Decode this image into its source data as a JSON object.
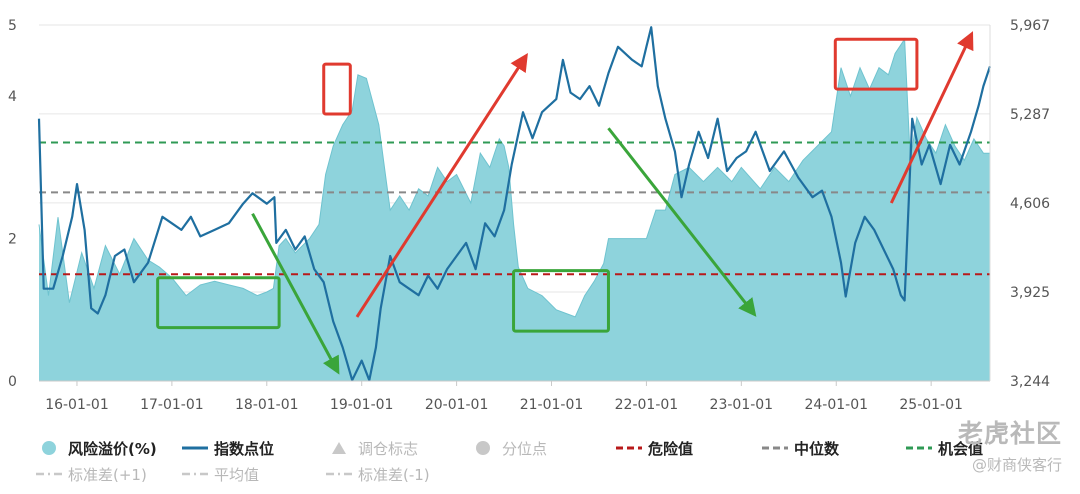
{
  "chart_data": {
    "type": "line",
    "title": "",
    "x_tick_labels": [
      "16-01-01",
      "17-01-01",
      "18-01-01",
      "19-01-01",
      "20-01-01",
      "21-01-01",
      "22-01-01",
      "23-01-01",
      "24-01-01",
      "25-01-01"
    ],
    "x_range": [
      2015.6,
      2025.62
    ],
    "y_left": {
      "range": [
        0,
        5
      ],
      "tick_labels": [
        "0",
        "2",
        "4",
        "5"
      ]
    },
    "y_right": {
      "range": [
        3244,
        5967
      ],
      "tick_labels": [
        "3,244",
        "3,925",
        "4,606",
        "5,287",
        "5,967"
      ]
    },
    "grid": "horizontal",
    "legend_placement": "bottom",
    "series": [
      {
        "name": "风险溢价(%)",
        "type": "area",
        "axis": "left",
        "color": "#8ed3dc",
        "points": [
          [
            2015.6,
            2.2
          ],
          [
            2015.7,
            1.2
          ],
          [
            2015.8,
            2.3
          ],
          [
            2015.92,
            1.1
          ],
          [
            2016.05,
            1.8
          ],
          [
            2016.18,
            1.3
          ],
          [
            2016.3,
            1.9
          ],
          [
            2016.45,
            1.5
          ],
          [
            2016.6,
            2.0
          ],
          [
            2016.75,
            1.7
          ],
          [
            2016.87,
            1.6
          ],
          [
            2017.0,
            1.45
          ],
          [
            2017.15,
            1.2
          ],
          [
            2017.3,
            1.35
          ],
          [
            2017.45,
            1.4
          ],
          [
            2017.6,
            1.35
          ],
          [
            2017.75,
            1.3
          ],
          [
            2017.9,
            1.2
          ],
          [
            2018.0,
            1.25
          ],
          [
            2018.07,
            1.3
          ],
          [
            2018.13,
            1.9
          ],
          [
            2018.2,
            2.0
          ],
          [
            2018.3,
            1.8
          ],
          [
            2018.45,
            2.0
          ],
          [
            2018.55,
            2.2
          ],
          [
            2018.62,
            2.9
          ],
          [
            2018.7,
            3.3
          ],
          [
            2018.8,
            3.6
          ],
          [
            2018.9,
            3.8
          ],
          [
            2018.96,
            4.3
          ],
          [
            2019.05,
            4.25
          ],
          [
            2019.1,
            4.0
          ],
          [
            2019.18,
            3.6
          ],
          [
            2019.25,
            2.9
          ],
          [
            2019.3,
            2.4
          ],
          [
            2019.4,
            2.6
          ],
          [
            2019.5,
            2.4
          ],
          [
            2019.6,
            2.7
          ],
          [
            2019.7,
            2.6
          ],
          [
            2019.8,
            3.0
          ],
          [
            2019.9,
            2.8
          ],
          [
            2020.0,
            2.9
          ],
          [
            2020.15,
            2.5
          ],
          [
            2020.25,
            3.2
          ],
          [
            2020.35,
            3.0
          ],
          [
            2020.45,
            3.4
          ],
          [
            2020.5,
            3.3
          ],
          [
            2020.55,
            3.0
          ],
          [
            2020.6,
            2.2
          ],
          [
            2020.65,
            1.6
          ],
          [
            2020.75,
            1.3
          ],
          [
            2020.9,
            1.2
          ],
          [
            2021.05,
            1.0
          ],
          [
            2021.15,
            0.95
          ],
          [
            2021.25,
            0.9
          ],
          [
            2021.35,
            1.2
          ],
          [
            2021.45,
            1.4
          ],
          [
            2021.55,
            1.65
          ],
          [
            2021.6,
            2.0
          ],
          [
            2021.7,
            2.0
          ],
          [
            2021.85,
            2.0
          ],
          [
            2022.0,
            2.0
          ],
          [
            2022.1,
            2.4
          ],
          [
            2022.2,
            2.4
          ],
          [
            2022.3,
            2.9
          ],
          [
            2022.45,
            3.0
          ],
          [
            2022.6,
            2.8
          ],
          [
            2022.75,
            3.0
          ],
          [
            2022.9,
            2.8
          ],
          [
            2023.0,
            3.0
          ],
          [
            2023.2,
            2.7
          ],
          [
            2023.35,
            3.0
          ],
          [
            2023.5,
            2.8
          ],
          [
            2023.65,
            3.1
          ],
          [
            2023.8,
            3.3
          ],
          [
            2023.95,
            3.5
          ],
          [
            2024.05,
            4.4
          ],
          [
            2024.15,
            4.0
          ],
          [
            2024.25,
            4.4
          ],
          [
            2024.35,
            4.1
          ],
          [
            2024.45,
            4.4
          ],
          [
            2024.55,
            4.3
          ],
          [
            2024.62,
            4.6
          ],
          [
            2024.72,
            4.8
          ],
          [
            2024.78,
            3.1
          ],
          [
            2024.85,
            3.7
          ],
          [
            2024.95,
            3.4
          ],
          [
            2025.05,
            3.2
          ],
          [
            2025.15,
            3.6
          ],
          [
            2025.25,
            3.3
          ],
          [
            2025.35,
            3.1
          ],
          [
            2025.45,
            3.4
          ],
          [
            2025.55,
            3.2
          ],
          [
            2025.62,
            3.2
          ]
        ]
      },
      {
        "name": "指数点位",
        "type": "line",
        "axis": "right",
        "color": "#1f6fa0",
        "points": [
          [
            2015.6,
            5250
          ],
          [
            2015.65,
            3950
          ],
          [
            2015.75,
            3950
          ],
          [
            2015.85,
            4200
          ],
          [
            2015.95,
            4500
          ],
          [
            2016.0,
            4750
          ],
          [
            2016.08,
            4400
          ],
          [
            2016.15,
            3800
          ],
          [
            2016.22,
            3760
          ],
          [
            2016.3,
            3900
          ],
          [
            2016.4,
            4200
          ],
          [
            2016.5,
            4250
          ],
          [
            2016.6,
            4000
          ],
          [
            2016.75,
            4150
          ],
          [
            2016.9,
            4500
          ],
          [
            2017.0,
            4450
          ],
          [
            2017.1,
            4400
          ],
          [
            2017.2,
            4500
          ],
          [
            2017.3,
            4350
          ],
          [
            2017.45,
            4400
          ],
          [
            2017.6,
            4450
          ],
          [
            2017.75,
            4600
          ],
          [
            2017.85,
            4680
          ],
          [
            2018.0,
            4600
          ],
          [
            2018.08,
            4650
          ],
          [
            2018.1,
            4300
          ],
          [
            2018.2,
            4400
          ],
          [
            2018.3,
            4250
          ],
          [
            2018.4,
            4350
          ],
          [
            2018.5,
            4100
          ],
          [
            2018.6,
            4000
          ],
          [
            2018.7,
            3700
          ],
          [
            2018.8,
            3500
          ],
          [
            2018.9,
            3250
          ],
          [
            2019.0,
            3400
          ],
          [
            2019.08,
            3250
          ],
          [
            2019.15,
            3500
          ],
          [
            2019.2,
            3800
          ],
          [
            2019.3,
            4200
          ],
          [
            2019.4,
            4000
          ],
          [
            2019.5,
            3950
          ],
          [
            2019.6,
            3900
          ],
          [
            2019.7,
            4050
          ],
          [
            2019.8,
            3950
          ],
          [
            2019.9,
            4100
          ],
          [
            2020.0,
            4200
          ],
          [
            2020.1,
            4300
          ],
          [
            2020.2,
            4100
          ],
          [
            2020.3,
            4450
          ],
          [
            2020.4,
            4350
          ],
          [
            2020.5,
            4550
          ],
          [
            2020.58,
            4900
          ],
          [
            2020.7,
            5300
          ],
          [
            2020.8,
            5100
          ],
          [
            2020.9,
            5300
          ],
          [
            2021.05,
            5400
          ],
          [
            2021.12,
            5700
          ],
          [
            2021.2,
            5450
          ],
          [
            2021.3,
            5400
          ],
          [
            2021.4,
            5500
          ],
          [
            2021.5,
            5350
          ],
          [
            2021.6,
            5600
          ],
          [
            2021.7,
            5800
          ],
          [
            2021.85,
            5700
          ],
          [
            2021.95,
            5650
          ],
          [
            2022.0,
            5800
          ],
          [
            2022.05,
            5950
          ],
          [
            2022.12,
            5500
          ],
          [
            2022.2,
            5250
          ],
          [
            2022.3,
            5000
          ],
          [
            2022.37,
            4650
          ],
          [
            2022.45,
            4900
          ],
          [
            2022.55,
            5150
          ],
          [
            2022.65,
            4950
          ],
          [
            2022.75,
            5250
          ],
          [
            2022.85,
            4850
          ],
          [
            2022.95,
            4950
          ],
          [
            2023.05,
            5000
          ],
          [
            2023.15,
            5150
          ],
          [
            2023.3,
            4850
          ],
          [
            2023.45,
            5000
          ],
          [
            2023.6,
            4800
          ],
          [
            2023.75,
            4650
          ],
          [
            2023.85,
            4700
          ],
          [
            2023.95,
            4500
          ],
          [
            2024.05,
            4150
          ],
          [
            2024.1,
            3890
          ],
          [
            2024.2,
            4300
          ],
          [
            2024.3,
            4500
          ],
          [
            2024.4,
            4400
          ],
          [
            2024.5,
            4250
          ],
          [
            2024.6,
            4100
          ],
          [
            2024.68,
            3900
          ],
          [
            2024.72,
            3860
          ],
          [
            2024.8,
            5250
          ],
          [
            2024.9,
            4900
          ],
          [
            2024.98,
            5050
          ],
          [
            2025.1,
            4750
          ],
          [
            2025.2,
            5050
          ],
          [
            2025.3,
            4900
          ],
          [
            2025.42,
            5150
          ],
          [
            2025.5,
            5350
          ],
          [
            2025.55,
            5500
          ],
          [
            2025.62,
            5650
          ]
        ]
      },
      {
        "name": "危险值",
        "type": "dashed-hline",
        "axis": "left",
        "color": "#b8191a",
        "value": 1.5
      },
      {
        "name": "中位数",
        "type": "dashed-hline",
        "axis": "left",
        "color": "#888888",
        "value": 2.65
      },
      {
        "name": "机会值",
        "type": "dashed-hline",
        "axis": "left",
        "color": "#2f9a55",
        "value": 3.35
      }
    ],
    "annotations": [
      {
        "type": "box",
        "color": "#e03a2f",
        "x": [
          2018.6,
          2018.88
        ],
        "y": [
          3.75,
          4.45
        ]
      },
      {
        "type": "box",
        "color": "#e03a2f",
        "x": [
          2023.99,
          2024.85
        ],
        "y": [
          4.1,
          4.8
        ]
      },
      {
        "type": "box",
        "color": "#3aa53a",
        "x": [
          2016.85,
          2018.13
        ],
        "y": [
          0.75,
          1.45
        ]
      },
      {
        "type": "box",
        "color": "#3aa53a",
        "x": [
          2020.6,
          2021.6
        ],
        "y": [
          0.7,
          1.55
        ]
      },
      {
        "type": "arrow",
        "color": "#3aa53a",
        "from": [
          2017.85,
          2.35
        ],
        "to": [
          2018.72,
          0.2
        ]
      },
      {
        "type": "arrow",
        "color": "#3aa53a",
        "from": [
          2021.6,
          3.55
        ],
        "to": [
          2023.1,
          1.0
        ]
      },
      {
        "type": "arrow",
        "color": "#e03a2f",
        "from": [
          2018.95,
          0.9
        ],
        "to": [
          2020.7,
          4.5
        ]
      },
      {
        "type": "arrow",
        "color": "#e03a2f",
        "from": [
          2024.58,
          2.5
        ],
        "to": [
          2025.4,
          4.8
        ]
      }
    ]
  },
  "legend": {
    "row1": [
      {
        "label": "风险溢价(%)",
        "symbol": "dot",
        "color": "#8ed3dc",
        "muted": false
      },
      {
        "label": "指数点位",
        "symbol": "line",
        "color": "#1f6fa0",
        "muted": false
      },
      {
        "label": "调仓标志",
        "symbol": "triangle",
        "color": "#c8c8c8",
        "muted": true
      },
      {
        "label": "分位点",
        "symbol": "dot",
        "color": "#c8c8c8",
        "muted": true
      },
      {
        "label": "危险值",
        "symbol": "dash",
        "color": "#b8191a",
        "muted": false
      },
      {
        "label": "中位数",
        "symbol": "dash",
        "color": "#888888",
        "muted": false
      },
      {
        "label": "机会值",
        "symbol": "dash",
        "color": "#2f9a55",
        "muted": false
      }
    ],
    "row2": [
      {
        "label": "标准差(+1)",
        "symbol": "dashdot",
        "color": "#c8c8c8",
        "muted": true
      },
      {
        "label": "平均值",
        "symbol": "dashdot",
        "color": "#c8c8c8",
        "muted": true
      },
      {
        "label": "标准差(-1)",
        "symbol": "dashdot",
        "color": "#c8c8c8",
        "muted": true
      }
    ]
  },
  "watermark": {
    "line1": "老虎社区",
    "line2": "@财商侠客行"
  }
}
